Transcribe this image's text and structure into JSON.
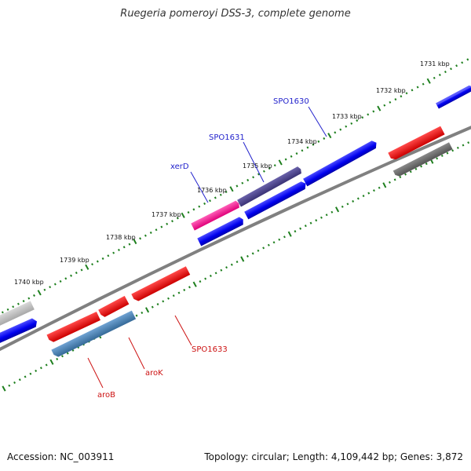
{
  "title": "Ruegeria pomeroyi DSS-3, complete genome",
  "footer": {
    "accession": "Accession: NC_003911",
    "summary": "Topology: circular; Length: 4,109,442 bp; Genes: 3,872"
  },
  "colors": {
    "backbone": "#808080",
    "ticks": "#1e7f1e",
    "label_forward": "#2222cc",
    "label_reverse": "#cc1111"
  },
  "scale_labels": [
    "1731 kbp",
    "1732 kbp",
    "1733 kbp",
    "1734 kbp",
    "1735 kbp",
    "1736 kbp",
    "1737 kbp",
    "1738 kbp",
    "1739 kbp",
    "1740 kbp"
  ],
  "genes": [
    {
      "name": "SPO1630",
      "strand": "forward",
      "color": "#0000ff"
    },
    {
      "name": "SPO1631",
      "strand": "forward",
      "color": "#4b4090"
    },
    {
      "name": "xerD",
      "strand": "forward",
      "color": "#ff1493"
    },
    {
      "name": "SPO1633",
      "strand": "reverse",
      "color": "#ff0000"
    },
    {
      "name": "aroK",
      "strand": "reverse",
      "color": "#ff0000"
    },
    {
      "name": "aroB",
      "strand": "reverse",
      "color": "#4682b4"
    }
  ]
}
